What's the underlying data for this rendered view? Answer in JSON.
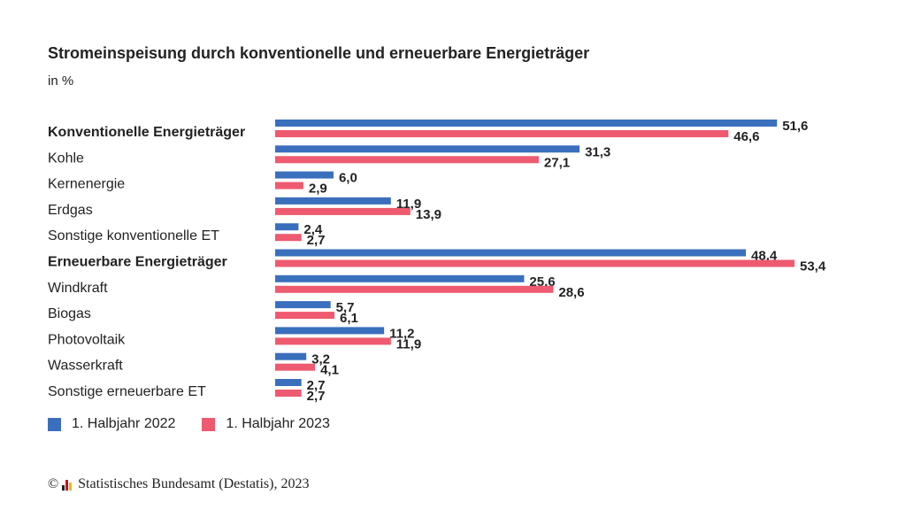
{
  "header": {
    "title": "Stromeinspeisung durch konventionelle und erneuerbare Energieträger",
    "subtitle": "in %"
  },
  "legend": {
    "items": [
      {
        "label": "1. Halbjahr 2022",
        "color": "#3a6fbd"
      },
      {
        "label": "1. Halbjahr 2023",
        "color": "#ee5a6f"
      }
    ]
  },
  "source": {
    "copyright": "©",
    "text": "Statistisches Bundesamt (Destatis), 2023"
  },
  "chart_data": {
    "type": "bar",
    "orientation": "horizontal",
    "title": "Stromeinspeisung durch konventionelle und erneuerbare Energieträger",
    "subtitle": "in %",
    "categories": [
      "Konventionelle Energieträger",
      "Kohle",
      "Kernenergie",
      "Erdgas",
      "Sonstige konventionelle ET",
      "Erneuerbare Energieträger",
      "Windkraft",
      "Biogas",
      "Photovoltaik",
      "Wasserkraft",
      "Sonstige erneuerbare ET"
    ],
    "bold_categories": [
      "Konventionelle Energieträger",
      "Erneuerbare Energieträger"
    ],
    "series": [
      {
        "name": "1. Halbjahr 2022",
        "color": "#3a6fbd",
        "values": [
          51.6,
          31.3,
          6.0,
          11.9,
          2.4,
          48.4,
          25.6,
          5.7,
          11.2,
          3.2,
          2.7
        ],
        "labels": [
          "51,6",
          "31,3",
          "6,0",
          "11,9",
          "2,4",
          "48,4",
          "25,6",
          "5,7",
          "11,2",
          "3,2",
          "2,7"
        ]
      },
      {
        "name": "1. Halbjahr 2023",
        "color": "#ee5a6f",
        "values": [
          46.6,
          27.1,
          2.9,
          13.9,
          2.7,
          53.4,
          28.6,
          6.1,
          11.9,
          4.1,
          2.7
        ],
        "labels": [
          "46,6",
          "27,1",
          "2,9",
          "13,9",
          "2,7",
          "53,4",
          "28,6",
          "6,1",
          "11,9",
          "4,1",
          "2,7"
        ]
      }
    ],
    "xlim": [
      0,
      53.4
    ],
    "grid": false,
    "legend_position": "bottom-left"
  }
}
